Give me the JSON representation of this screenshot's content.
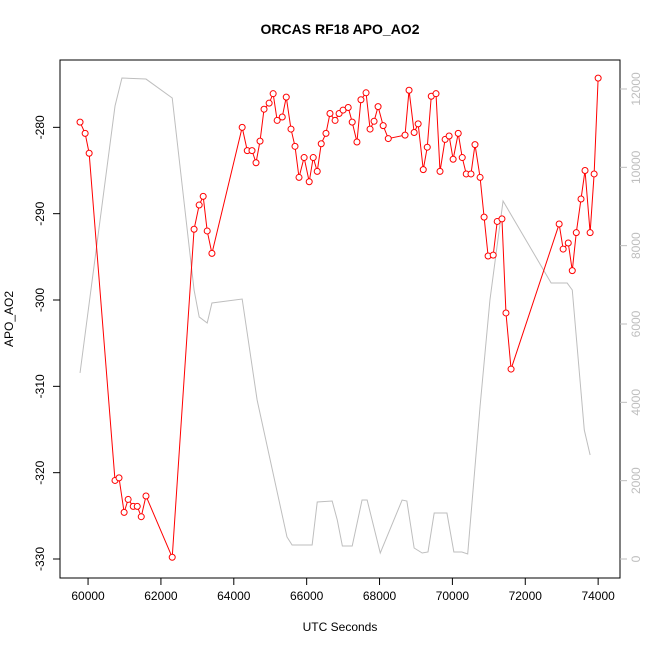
{
  "chart_data": {
    "type": "line",
    "title": "ORCAS RF18 APO_AO2",
    "xlabel": "UTC Seconds",
    "ylabel": "APO_AO2",
    "xlim": [
      59230,
      74600
    ],
    "ylim": [
      -332.2,
      -272.2
    ],
    "y2lim": [
      -485,
      12740
    ],
    "xticks": [
      60000,
      62000,
      64000,
      66000,
      68000,
      70000,
      72000,
      74000
    ],
    "yticks": [
      -330,
      -320,
      -310,
      -300,
      -290,
      -280
    ],
    "y2ticks": [
      0,
      2000,
      4000,
      6000,
      8000,
      10000,
      12000
    ],
    "y2color": "#bebebe",
    "series": [
      {
        "color": "#bebebe",
        "axis": "y2",
        "markers": false,
        "x": [
          59780,
          60740,
          60930,
          61590,
          62310,
          62910,
          63050,
          63270,
          63400,
          64230,
          64640,
          65460,
          65600,
          66150,
          66290,
          66700,
          66840,
          66980,
          67250,
          67520,
          67660,
          68020,
          68620,
          68750,
          68950,
          69170,
          69330,
          69500,
          69850,
          70040,
          70260,
          70420,
          70760,
          71030,
          71390,
          72710,
          73150,
          73290,
          73620,
          73780
        ],
        "values": [
          4750,
          11565,
          12280,
          12254,
          11770,
          6868,
          6180,
          6025,
          6536,
          6638,
          4060,
          562,
          357,
          357,
          1455,
          1480,
          995,
          332,
          332,
          1506,
          1506,
          153,
          1506,
          1480,
          281,
          153,
          179,
          1174,
          1174,
          179,
          179,
          128,
          3906,
          6612,
          9140,
          7046,
          7046,
          6868,
          3293,
          2655
        ]
      },
      {
        "color": "#ff0000",
        "markers": true,
        "x": [
          59780,
          59920,
          60030,
          60740,
          60850,
          60990,
          61100,
          61240,
          61350,
          61460,
          61590,
          62310,
          62910,
          63050,
          63160,
          63270,
          63400,
          64230,
          64370,
          64500,
          64610,
          64720,
          64830,
          64970,
          65080,
          65190,
          65330,
          65440,
          65570,
          65680,
          65790,
          65930,
          66070,
          66180,
          66290,
          66400,
          66530,
          66640,
          66780,
          66890,
          67000,
          67140,
          67250,
          67380,
          67490,
          67630,
          67740,
          67850,
          67960,
          68100,
          68240,
          68700,
          68810,
          68950,
          69060,
          69200,
          69310,
          69420,
          69550,
          69660,
          69800,
          69910,
          70020,
          70160,
          70270,
          70380,
          70510,
          70620,
          70760,
          70870,
          70980,
          71120,
          71230,
          71360,
          71470,
          71610,
          72930,
          73040,
          73180,
          73290,
          73400,
          73530,
          73640,
          73780,
          73890,
          74000
        ],
        "values": [
          -279.4,
          -280.7,
          -283.0,
          -320.9,
          -320.6,
          -324.6,
          -323.1,
          -323.9,
          -323.9,
          -325.1,
          -322.7,
          -329.8,
          -291.8,
          -289.0,
          -288.0,
          -292.0,
          -294.6,
          -280.0,
          -282.7,
          -282.7,
          -284.1,
          -281.6,
          -277.9,
          -277.2,
          -276.1,
          -279.2,
          -278.8,
          -276.5,
          -280.2,
          -282.2,
          -285.8,
          -283.5,
          -286.3,
          -283.5,
          -285.1,
          -281.9,
          -280.7,
          -278.4,
          -279.2,
          -278.4,
          -278.0,
          -277.7,
          -279.4,
          -281.7,
          -276.8,
          -276.0,
          -280.2,
          -279.3,
          -277.6,
          -279.8,
          -281.3,
          -280.9,
          -275.7,
          -280.6,
          -279.6,
          -284.9,
          -282.3,
          -276.4,
          -276.1,
          -285.1,
          -281.4,
          -281.0,
          -283.7,
          -280.7,
          -283.5,
          -285.4,
          -285.4,
          -282.0,
          -285.8,
          -290.4,
          -294.9,
          -294.8,
          -290.9,
          -290.6,
          -301.5,
          -308.0,
          -291.2,
          -294.1,
          -293.4,
          -296.6,
          -292.2,
          -288.3,
          -285.0,
          -292.2,
          -285.4,
          -274.3
        ]
      }
    ]
  }
}
